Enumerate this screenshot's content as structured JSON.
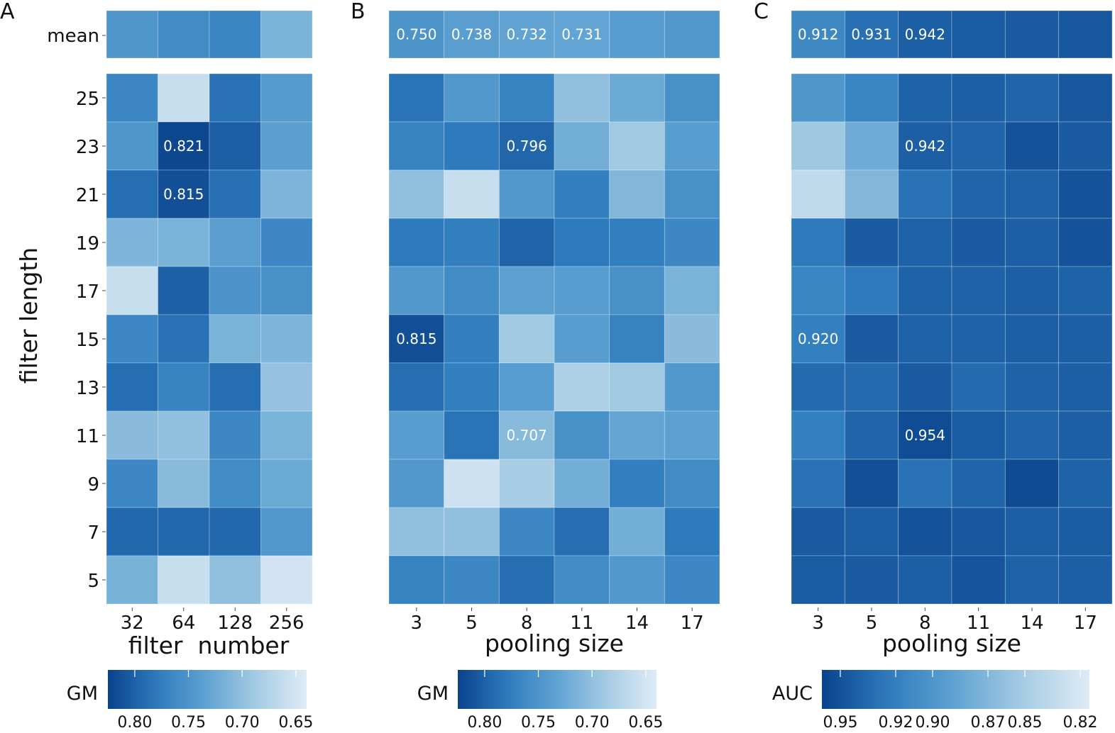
{
  "figure": {
    "shared_ylabel": "filter length",
    "row_labels": [
      "25",
      "23",
      "21",
      "19",
      "17",
      "15",
      "13",
      "11",
      "9",
      "7",
      "5"
    ],
    "mean_label": "mean"
  },
  "chart_data": [
    {
      "type": "heatmap",
      "panel": "A",
      "xlabel": "filter  number",
      "ylabel": "filter length",
      "x": [
        "32",
        "64",
        "128",
        "256"
      ],
      "y": [
        "25",
        "23",
        "21",
        "19",
        "17",
        "15",
        "13",
        "11",
        "9",
        "7",
        "5"
      ],
      "mean_row": [
        0.748,
        0.76,
        0.768,
        0.715
      ],
      "mean_annotations": [
        null,
        null,
        null,
        null
      ],
      "values": [
        [
          0.767,
          0.66,
          0.787,
          0.742
        ],
        [
          0.748,
          0.821,
          0.802,
          0.738
        ],
        [
          0.79,
          0.815,
          0.788,
          0.712
        ],
        [
          0.712,
          0.715,
          0.738,
          0.765
        ],
        [
          0.66,
          0.8,
          0.752,
          0.755
        ],
        [
          0.765,
          0.787,
          0.715,
          0.712
        ],
        [
          0.79,
          0.77,
          0.79,
          0.697
        ],
        [
          0.705,
          0.7,
          0.765,
          0.715
        ],
        [
          0.765,
          0.707,
          0.76,
          0.725
        ],
        [
          0.795,
          0.795,
          0.795,
          0.746
        ],
        [
          0.717,
          0.66,
          0.7,
          0.65
        ]
      ],
      "annotations": [
        [
          null,
          null,
          null,
          null
        ],
        [
          null,
          "0.821",
          null,
          null
        ],
        [
          null,
          "0.815",
          null,
          null
        ],
        [
          null,
          null,
          null,
          null
        ],
        [
          null,
          null,
          null,
          null
        ],
        [
          null,
          null,
          null,
          null
        ],
        [
          null,
          null,
          null,
          null
        ],
        [
          null,
          null,
          null,
          null
        ],
        [
          null,
          null,
          null,
          null
        ],
        [
          null,
          null,
          null,
          null
        ],
        [
          null,
          null,
          null,
          null
        ]
      ],
      "colorbar": {
        "label": "GM",
        "ticks": [
          "0.80",
          "0.75",
          "0.70",
          "0.65"
        ],
        "vmin": 0.64,
        "vmax": 0.825,
        "reversed": true
      }
    },
    {
      "type": "heatmap",
      "panel": "B",
      "xlabel": "pooling size",
      "ylabel": "",
      "x": [
        "3",
        "5",
        "8",
        "11",
        "14",
        "17"
      ],
      "y": [
        "25",
        "23",
        "21",
        "19",
        "17",
        "15",
        "13",
        "11",
        "9",
        "7",
        "5"
      ],
      "mean_row": [
        0.75,
        0.738,
        0.732,
        0.731,
        0.74,
        0.745
      ],
      "mean_annotations": [
        "0.750",
        "0.738",
        "0.732",
        "0.731",
        null,
        null
      ],
      "values": [
        [
          0.785,
          0.745,
          0.77,
          0.7,
          0.725,
          0.755
        ],
        [
          0.77,
          0.78,
          0.796,
          0.72,
          0.69,
          0.74
        ],
        [
          0.7,
          0.66,
          0.745,
          0.775,
          0.71,
          0.755
        ],
        [
          0.78,
          0.775,
          0.798,
          0.78,
          0.775,
          0.765
        ],
        [
          0.745,
          0.76,
          0.735,
          0.74,
          0.755,
          0.715
        ],
        [
          0.815,
          0.775,
          0.69,
          0.74,
          0.77,
          0.705
        ],
        [
          0.79,
          0.775,
          0.74,
          0.68,
          0.69,
          0.745
        ],
        [
          0.74,
          0.785,
          0.707,
          0.755,
          0.73,
          0.735
        ],
        [
          0.745,
          0.655,
          0.685,
          0.72,
          0.775,
          0.76
        ],
        [
          0.7,
          0.7,
          0.765,
          0.79,
          0.72,
          0.78
        ],
        [
          0.77,
          0.765,
          0.79,
          0.76,
          0.745,
          0.765
        ]
      ],
      "annotations": [
        [
          null,
          null,
          null,
          null,
          null,
          null
        ],
        [
          null,
          null,
          "0.796",
          null,
          null,
          null
        ],
        [
          null,
          null,
          null,
          null,
          null,
          null
        ],
        [
          null,
          null,
          null,
          null,
          null,
          null
        ],
        [
          null,
          null,
          null,
          null,
          null,
          null
        ],
        [
          "0.815",
          null,
          null,
          null,
          null,
          null
        ],
        [
          null,
          null,
          null,
          null,
          null,
          null
        ],
        [
          null,
          null,
          "0.707",
          null,
          null,
          null
        ],
        [
          null,
          null,
          null,
          null,
          null,
          null
        ],
        [
          null,
          null,
          null,
          null,
          null,
          null
        ],
        [
          null,
          null,
          null,
          null,
          null,
          null
        ]
      ],
      "colorbar": {
        "label": "GM",
        "ticks": [
          "0.80",
          "0.75",
          "0.70",
          "0.65"
        ],
        "vmin": 0.64,
        "vmax": 0.825,
        "reversed": true
      }
    },
    {
      "type": "heatmap",
      "panel": "C",
      "xlabel": "pooling size",
      "ylabel": "",
      "x": [
        "3",
        "5",
        "8",
        "11",
        "14",
        "17"
      ],
      "y": [
        "25",
        "23",
        "21",
        "19",
        "17",
        "15",
        "13",
        "11",
        "9",
        "7",
        "5"
      ],
      "mean_row": [
        0.912,
        0.931,
        0.942,
        0.944,
        0.945,
        0.946
      ],
      "mean_annotations": [
        "0.912",
        "0.931",
        "0.942",
        null,
        null,
        null
      ],
      "values": [
        [
          0.9,
          0.915,
          0.94,
          0.942,
          0.938,
          0.946
        ],
        [
          0.855,
          0.88,
          0.942,
          0.938,
          0.95,
          0.945
        ],
        [
          0.835,
          0.87,
          0.93,
          0.938,
          0.94,
          0.95
        ],
        [
          0.925,
          0.945,
          0.94,
          0.945,
          0.942,
          0.95
        ],
        [
          0.915,
          0.925,
          0.94,
          0.94,
          0.942,
          0.94
        ],
        [
          0.92,
          0.945,
          0.94,
          0.94,
          0.942,
          0.942
        ],
        [
          0.935,
          0.935,
          0.945,
          0.935,
          0.94,
          0.942
        ],
        [
          0.92,
          0.938,
          0.954,
          0.944,
          0.938,
          0.942
        ],
        [
          0.93,
          0.952,
          0.93,
          0.938,
          0.955,
          0.94
        ],
        [
          0.945,
          0.942,
          0.95,
          0.946,
          0.942,
          0.944
        ],
        [
          0.944,
          0.945,
          0.942,
          0.948,
          0.94,
          0.942
        ]
      ],
      "annotations": [
        [
          null,
          null,
          null,
          null,
          null,
          null
        ],
        [
          null,
          null,
          "0.942",
          null,
          null,
          null
        ],
        [
          null,
          null,
          null,
          null,
          null,
          null
        ],
        [
          null,
          null,
          null,
          null,
          null,
          null
        ],
        [
          null,
          null,
          null,
          null,
          null,
          null
        ],
        [
          "0.920",
          null,
          null,
          null,
          null,
          null
        ],
        [
          null,
          null,
          null,
          null,
          null,
          null
        ],
        [
          null,
          null,
          "0.954",
          null,
          null,
          null
        ],
        [
          null,
          null,
          null,
          null,
          null,
          null
        ],
        [
          null,
          null,
          null,
          null,
          null,
          null
        ],
        [
          null,
          null,
          null,
          null,
          null,
          null
        ]
      ],
      "colorbar": {
        "label": "AUC",
        "ticks": [
          "0.95",
          "0.92",
          "0.90",
          "0.87",
          "0.85",
          "0.82"
        ],
        "vmin": 0.815,
        "vmax": 0.96,
        "reversed": true
      }
    }
  ]
}
